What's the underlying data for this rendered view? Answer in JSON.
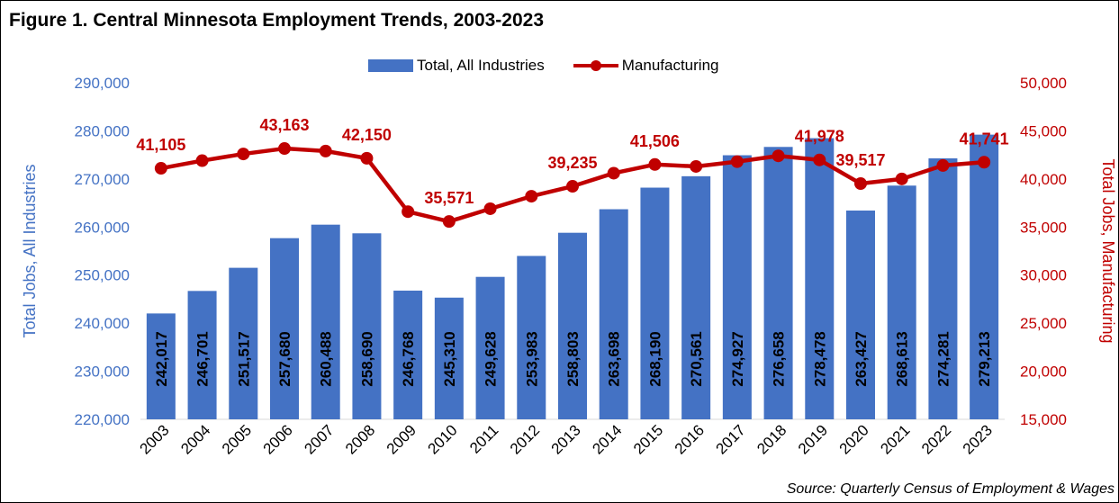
{
  "chart_data": {
    "type": "bar+line",
    "title": "Figure 1. Central Minnesota Employment Trends, 2003-2023",
    "source": "Source: Quarterly Census of Employment & Wages",
    "x": [
      "2003",
      "2004",
      "2005",
      "2006",
      "2007",
      "2008",
      "2009",
      "2010",
      "2011",
      "2012",
      "2013",
      "2014",
      "2015",
      "2016",
      "2017",
      "2018",
      "2019",
      "2020",
      "2021",
      "2022",
      "2023"
    ],
    "ylabel_left": "Total Jobs, All Industries",
    "ylabel_right": "Total Jobs, Manufacturing",
    "ylim_left": [
      220000,
      290000
    ],
    "ylim_right": [
      15000,
      50000
    ],
    "yticks_left": [
      "220,000",
      "230,000",
      "240,000",
      "250,000",
      "260,000",
      "270,000",
      "280,000",
      "290,000"
    ],
    "yticks_right": [
      "15,000",
      "20,000",
      "25,000",
      "30,000",
      "35,000",
      "40,000",
      "45,000",
      "50,000"
    ],
    "legend_position": "top-center",
    "grid": false,
    "series": [
      {
        "name": "Total, All Industries",
        "type": "bar",
        "axis": "left",
        "color": "#4472c4",
        "values": [
          242017,
          246701,
          251517,
          257680,
          260488,
          258690,
          246768,
          245310,
          249628,
          253983,
          258803,
          263698,
          268190,
          270561,
          274927,
          276658,
          278478,
          263427,
          268613,
          274281,
          279213
        ],
        "labels": [
          "242,017",
          "246,701",
          "251,517",
          "257,680",
          "260,488",
          "258,690",
          "246,768",
          "245,310",
          "249,628",
          "253,983",
          "258,803",
          "263,698",
          "268,190",
          "270,561",
          "274,927",
          "276,658",
          "278,478",
          "263,427",
          "268,613",
          "274,281",
          "279,213"
        ]
      },
      {
        "name": "Manufacturing",
        "type": "line",
        "axis": "right",
        "color": "#c00000",
        "values": [
          41105,
          41900,
          42600,
          43163,
          42900,
          42150,
          36600,
          35571,
          36900,
          38200,
          39235,
          40600,
          41506,
          41300,
          41800,
          42400,
          41978,
          39517,
          40000,
          41400,
          41741
        ],
        "labels": [
          "41,105",
          "",
          "",
          "43,163",
          "",
          "42,150",
          "",
          "35,571",
          "",
          "",
          "39,235",
          "",
          "41,506",
          "",
          "",
          "",
          "41,978",
          "39,517",
          "",
          "",
          "41,741"
        ]
      }
    ],
    "colors": {
      "left_axis": "#4472c4",
      "right_axis": "#c00000"
    }
  }
}
